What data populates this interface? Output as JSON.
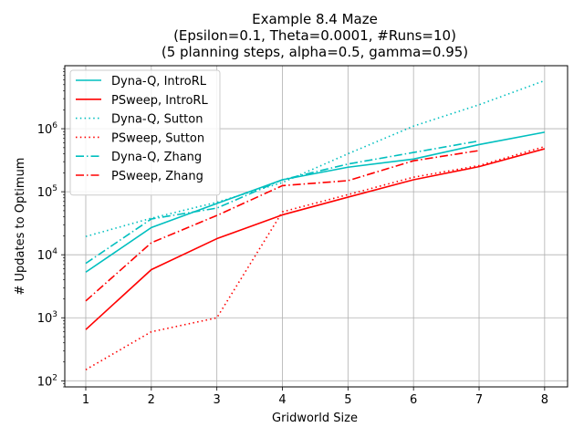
{
  "chart_data": {
    "type": "line",
    "title_lines": [
      "Example 8.4 Maze",
      "(Epsilon=0.1, Theta=0.0001, #Runs=10)",
      "(5 planning steps, alpha=0.5, gamma=0.95)"
    ],
    "xlabel": "Gridworld Size",
    "ylabel": "# Updates to Optimum",
    "x_ticks": [
      1,
      2,
      3,
      4,
      5,
      6,
      7,
      8
    ],
    "y_scale": "log",
    "y_ticks": [
      {
        "value": 100,
        "base": "10",
        "exp": "2"
      },
      {
        "value": 1000,
        "base": "10",
        "exp": "3"
      },
      {
        "value": 10000,
        "base": "10",
        "exp": "4"
      },
      {
        "value": 100000,
        "base": "10",
        "exp": "5"
      },
      {
        "value": 1000000,
        "base": "10",
        "exp": "6"
      }
    ],
    "xlim": [
      0.68,
      8.35
    ],
    "ylim": [
      80,
      10000000
    ],
    "grid": true,
    "legend_position": "upper-left",
    "series": [
      {
        "name": "Dyna-Q, IntroRL",
        "color": "#00bfbf",
        "style": "solid",
        "x": [
          1,
          2,
          3,
          4,
          5,
          6,
          7,
          8
        ],
        "y": [
          5300,
          27000,
          65000,
          155000,
          245000,
          330000,
          560000,
          880000
        ]
      },
      {
        "name": "PSweep, IntroRL",
        "color": "#ff0000",
        "style": "solid",
        "x": [
          1,
          2,
          3,
          4,
          5,
          6,
          7,
          8
        ],
        "y": [
          650,
          5800,
          18000,
          43000,
          82000,
          155000,
          250000,
          480000
        ]
      },
      {
        "name": "Dyna-Q, Sutton",
        "color": "#00bfbf",
        "style": "dotted",
        "x": [
          1,
          2,
          3,
          4,
          5,
          6,
          7,
          8
        ],
        "y": [
          19500,
          38000,
          68000,
          140000,
          400000,
          1100000,
          2400000,
          5800000
        ]
      },
      {
        "name": "PSweep, Sutton",
        "color": "#ff0000",
        "style": "dotted",
        "x": [
          1,
          2,
          3,
          4,
          5,
          6,
          7,
          8
        ],
        "y": [
          150,
          600,
          1000,
          48000,
          90000,
          170000,
          260000,
          520000
        ]
      },
      {
        "name": "Dyna-Q, Zhang",
        "color": "#00bfbf",
        "style": "dashdot",
        "x": [
          1,
          2,
          3,
          4,
          5,
          6,
          7
        ],
        "y": [
          7300,
          37000,
          55000,
          155000,
          275000,
          420000,
          640000
        ]
      },
      {
        "name": "PSweep, Zhang",
        "color": "#ff0000",
        "style": "dashdot",
        "x": [
          1,
          2,
          3,
          4,
          5,
          6,
          7
        ],
        "y": [
          1850,
          15500,
          42000,
          125000,
          150000,
          310000,
          450000
        ]
      }
    ]
  }
}
